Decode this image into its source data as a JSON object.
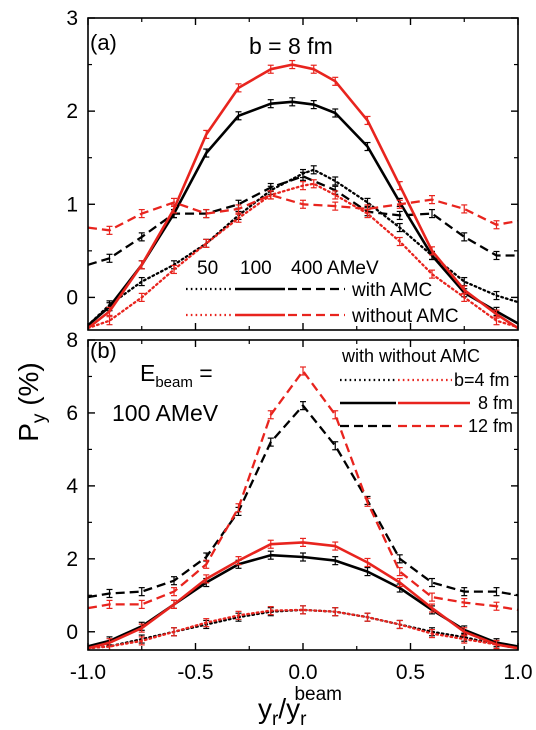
{
  "axes": {
    "ylabel_main": "P",
    "ylabel_sub": "y",
    "ylabel_tail": " (%)",
    "xlabel_main": "y",
    "xlabel_sub": "r",
    "xlabel_slash": "/y",
    "xlabel_sub2": "r",
    "xlabel_sup": "beam"
  },
  "colors": {
    "black": "#000000",
    "red": "#e8241e"
  },
  "chart_data": [
    {
      "type": "line",
      "panel_label": "(a)",
      "title": "b = 8 fm",
      "xlim": [
        -1.0,
        1.0
      ],
      "ylim": [
        -0.35,
        3.0
      ],
      "yticks": [
        "0",
        "1",
        "2",
        "3"
      ],
      "xticks": [],
      "grid": false,
      "legend": {
        "header": {
          "c1": "50",
          "c2": "100",
          "c3": "400 AMeV"
        },
        "row1": "with AMC",
        "row2": "without AMC"
      },
      "series": [
        {
          "color": "black",
          "dash": "dot",
          "error_bars": true,
          "x": [
            -1.0,
            -0.9,
            -0.75,
            -0.6,
            -0.45,
            -0.3,
            -0.15,
            0.0,
            0.05,
            0.15,
            0.3,
            0.45,
            0.6,
            0.75,
            0.9,
            1.0
          ],
          "y": [
            -0.3,
            -0.08,
            0.17,
            0.35,
            0.58,
            0.88,
            1.15,
            1.33,
            1.37,
            1.25,
            1.02,
            0.75,
            0.45,
            0.17,
            0.02,
            -0.05
          ]
        },
        {
          "color": "black",
          "dash": "solid",
          "error_bars": true,
          "x": [
            -1.0,
            -0.9,
            -0.75,
            -0.6,
            -0.45,
            -0.3,
            -0.15,
            -0.05,
            0.05,
            0.15,
            0.3,
            0.45,
            0.6,
            0.75,
            0.9,
            1.0
          ],
          "y": [
            -0.3,
            -0.1,
            0.35,
            0.9,
            1.55,
            1.95,
            2.08,
            2.1,
            2.07,
            1.98,
            1.62,
            1.02,
            0.45,
            0.05,
            -0.15,
            -0.28
          ]
        },
        {
          "color": "black",
          "dash": "dash",
          "error_bars": true,
          "x": [
            -1.0,
            -0.9,
            -0.75,
            -0.6,
            -0.45,
            -0.3,
            -0.15,
            0.0,
            0.15,
            0.3,
            0.45,
            0.6,
            0.75,
            0.9,
            1.0
          ],
          "y": [
            0.35,
            0.42,
            0.65,
            0.9,
            0.9,
            1.0,
            1.18,
            1.3,
            1.15,
            0.92,
            0.88,
            0.9,
            0.65,
            0.45,
            0.45
          ]
        },
        {
          "color": "red",
          "dash": "dot",
          "error_bars": true,
          "x": [
            -1.0,
            -0.9,
            -0.75,
            -0.6,
            -0.45,
            -0.3,
            -0.15,
            0.0,
            0.05,
            0.15,
            0.3,
            0.45,
            0.6,
            0.75,
            0.9,
            1.0
          ],
          "y": [
            -0.33,
            -0.25,
            0.0,
            0.3,
            0.58,
            0.85,
            1.1,
            1.2,
            1.22,
            1.1,
            0.9,
            0.6,
            0.25,
            0.0,
            -0.25,
            -0.32
          ]
        },
        {
          "color": "red",
          "dash": "solid",
          "error_bars": true,
          "x": [
            -1.0,
            -0.9,
            -0.75,
            -0.6,
            -0.45,
            -0.3,
            -0.15,
            -0.05,
            0.05,
            0.15,
            0.3,
            0.45,
            0.6,
            0.75,
            0.9,
            1.0
          ],
          "y": [
            -0.33,
            -0.15,
            0.35,
            0.95,
            1.75,
            2.25,
            2.45,
            2.5,
            2.45,
            2.32,
            1.9,
            1.2,
            0.5,
            0.08,
            -0.18,
            -0.33
          ]
        },
        {
          "color": "red",
          "dash": "dash",
          "error_bars": true,
          "x": [
            -1.0,
            -0.9,
            -0.75,
            -0.6,
            -0.45,
            -0.3,
            -0.15,
            0.0,
            0.15,
            0.3,
            0.45,
            0.6,
            0.75,
            0.9,
            1.0
          ],
          "y": [
            0.75,
            0.72,
            0.9,
            1.02,
            0.9,
            0.95,
            1.1,
            1.0,
            0.98,
            0.95,
            1.0,
            1.05,
            0.95,
            0.78,
            0.82
          ]
        }
      ]
    },
    {
      "type": "line",
      "panel_label": "(b)",
      "annotation": {
        "line1_main": "E",
        "line1_sub": "beam",
        "line1_tail": " =",
        "line2": "100 AMeV"
      },
      "xlim": [
        -1.0,
        1.0
      ],
      "ylim": [
        -0.5,
        8.0
      ],
      "yticks": [
        "0",
        "2",
        "4",
        "6",
        "8"
      ],
      "xticks": [
        "-1.0",
        "-0.5",
        "0.0",
        "0.5",
        "1.0"
      ],
      "grid": false,
      "legend": {
        "header": "with without AMC",
        "labels": [
          "b=4 fm",
          "8 fm",
          "12 fm"
        ]
      },
      "series": [
        {
          "color": "black",
          "dash": "dot",
          "error_bars": true,
          "x": [
            -1.0,
            -0.9,
            -0.75,
            -0.6,
            -0.45,
            -0.3,
            -0.15,
            0.0,
            0.15,
            0.3,
            0.45,
            0.6,
            0.75,
            0.9,
            1.0
          ],
          "y": [
            -0.45,
            -0.4,
            -0.2,
            0.0,
            0.2,
            0.4,
            0.55,
            0.6,
            0.55,
            0.4,
            0.2,
            0.0,
            -0.15,
            -0.35,
            -0.45
          ]
        },
        {
          "color": "black",
          "dash": "solid",
          "error_bars": true,
          "x": [
            -1.0,
            -0.9,
            -0.75,
            -0.6,
            -0.45,
            -0.3,
            -0.15,
            0.0,
            0.15,
            0.3,
            0.45,
            0.6,
            0.75,
            0.9,
            1.0
          ],
          "y": [
            -0.4,
            -0.25,
            0.15,
            0.75,
            1.35,
            1.85,
            2.1,
            2.05,
            1.95,
            1.65,
            1.2,
            0.6,
            0.05,
            -0.3,
            -0.4
          ]
        },
        {
          "color": "black",
          "dash": "dash",
          "error_bars": true,
          "x": [
            -1.0,
            -0.9,
            -0.75,
            -0.6,
            -0.45,
            -0.3,
            -0.15,
            0.0,
            0.15,
            0.3,
            0.45,
            0.6,
            0.75,
            0.9,
            1.0
          ],
          "y": [
            0.95,
            1.05,
            1.1,
            1.4,
            2.05,
            3.3,
            5.2,
            6.2,
            5.1,
            3.6,
            2.0,
            1.35,
            1.1,
            1.1,
            1.0
          ]
        },
        {
          "color": "red",
          "dash": "dot",
          "error_bars": true,
          "x": [
            -1.0,
            -0.9,
            -0.75,
            -0.6,
            -0.45,
            -0.3,
            -0.15,
            0.0,
            0.15,
            0.3,
            0.45,
            0.6,
            0.75,
            0.9,
            1.0
          ],
          "y": [
            -0.45,
            -0.4,
            -0.25,
            0.0,
            0.25,
            0.45,
            0.58,
            0.6,
            0.55,
            0.4,
            0.2,
            -0.05,
            -0.2,
            -0.35,
            -0.45
          ]
        },
        {
          "color": "red",
          "dash": "solid",
          "error_bars": true,
          "x": [
            -1.0,
            -0.9,
            -0.75,
            -0.6,
            -0.45,
            -0.3,
            -0.15,
            0.0,
            0.15,
            0.3,
            0.45,
            0.6,
            0.75,
            0.9,
            1.0
          ],
          "y": [
            -0.45,
            -0.3,
            0.1,
            0.75,
            1.45,
            1.95,
            2.4,
            2.45,
            2.35,
            1.9,
            1.35,
            0.65,
            0.0,
            -0.35,
            -0.45
          ]
        },
        {
          "color": "red",
          "dash": "dash",
          "error_bars": true,
          "x": [
            -1.0,
            -0.9,
            -0.75,
            -0.6,
            -0.45,
            -0.3,
            -0.15,
            0.0,
            0.15,
            0.3,
            0.45,
            0.6,
            0.75,
            0.9,
            1.0
          ],
          "y": [
            0.65,
            0.75,
            0.75,
            1.1,
            1.85,
            3.4,
            5.95,
            7.15,
            5.95,
            3.55,
            1.65,
            0.95,
            0.8,
            0.7,
            0.6
          ]
        }
      ]
    }
  ]
}
